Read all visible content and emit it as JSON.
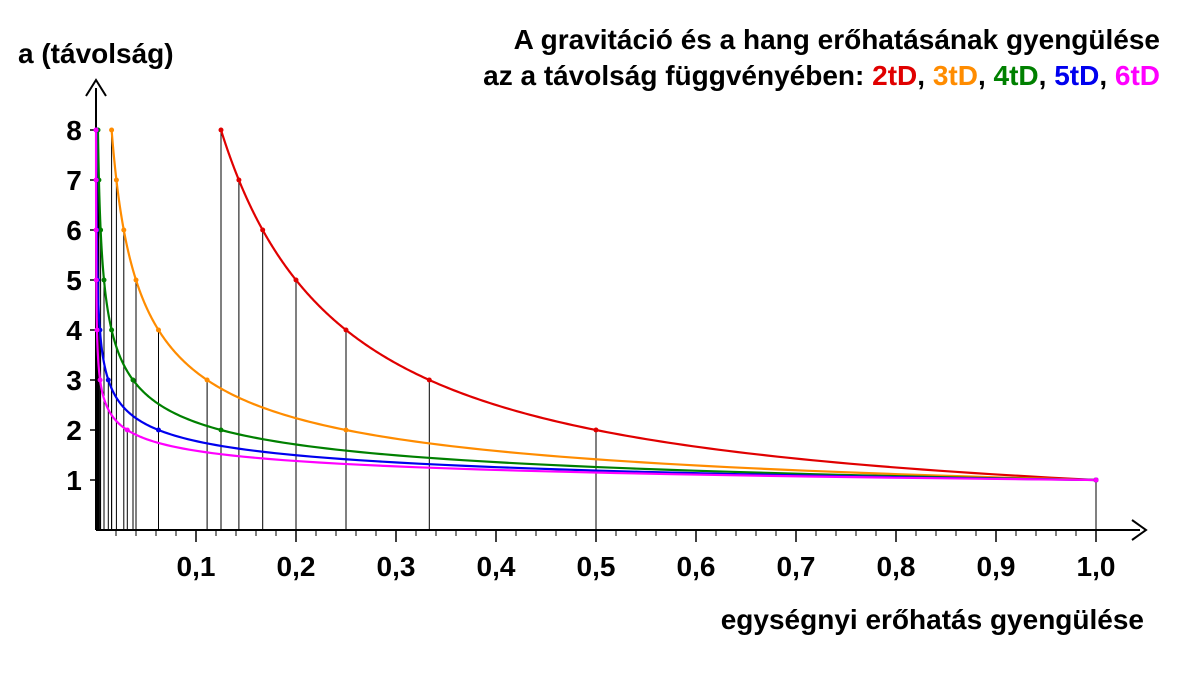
{
  "chart_data": {
    "type": "line",
    "title_line1": "A gravitáció és a hang erőhatásának gyengülése",
    "title_line2": "az a távolság függvényében: ",
    "title_sep": ", ",
    "ylabel": "a (távolság)",
    "xlabel": "egységnyi erőhatás gyengülése",
    "xlim": [
      0,
      1.0
    ],
    "ylim": [
      0,
      8
    ],
    "x_ticks": [
      "0,1",
      "0,2",
      "0,3",
      "0,4",
      "0,5",
      "0,6",
      "0,7",
      "0,8",
      "0,9",
      "1,0"
    ],
    "y_ticks": [
      "1",
      "2",
      "3",
      "4",
      "5",
      "6",
      "7",
      "8"
    ],
    "series": [
      {
        "name": "2tD",
        "exponent": 1,
        "color": "#e00000",
        "distances": [
          1,
          2,
          3,
          4,
          5,
          6,
          7,
          8
        ],
        "x": [
          1.0,
          0.5,
          0.3333,
          0.25,
          0.2,
          0.1667,
          0.1429,
          0.125
        ]
      },
      {
        "name": "3tD",
        "exponent": 2,
        "color": "#ff8c00",
        "distances": [
          1,
          2,
          3,
          4,
          5,
          6,
          7,
          8
        ],
        "x": [
          1.0,
          0.25,
          0.1111,
          0.0625,
          0.04,
          0.0278,
          0.0204,
          0.0156
        ]
      },
      {
        "name": "4tD",
        "exponent": 3,
        "color": "#008000",
        "distances": [
          1,
          2,
          3,
          4,
          5,
          6,
          7,
          8
        ],
        "x": [
          1.0,
          0.125,
          0.037,
          0.0156,
          0.008,
          0.0046,
          0.0029,
          0.002
        ]
      },
      {
        "name": "5tD",
        "exponent": 4,
        "color": "#0000ee",
        "distances": [
          1,
          2,
          3,
          4,
          5,
          6,
          7,
          8
        ],
        "x": [
          1.0,
          0.0625,
          0.0123,
          0.0039,
          0.0016,
          0.0008,
          0.0004,
          0.0002
        ]
      },
      {
        "name": "6tD",
        "exponent": 5,
        "color": "#ff00ff",
        "distances": [
          1,
          2,
          3,
          4,
          5,
          6,
          7,
          8
        ],
        "x": [
          1.0,
          0.0313,
          0.0041,
          0.001,
          0.0003,
          0.0001,
          0.0001,
          0.0
        ]
      }
    ],
    "grid": false,
    "legend": "in-title"
  }
}
